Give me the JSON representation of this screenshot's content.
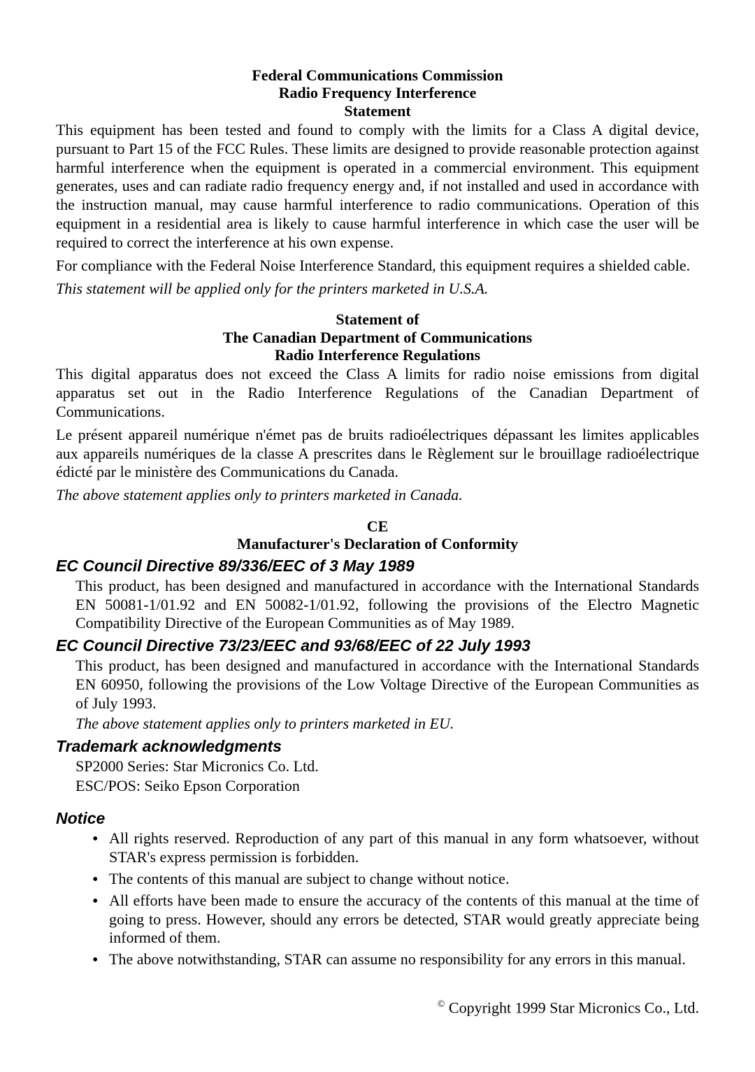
{
  "fcc": {
    "title_line1": "Federal Communications Commission",
    "title_line2": "Radio Frequency Interference",
    "title_line3": "Statement",
    "para1": "This equipment has been tested and found to comply with the limits for a Class A digital device, pursuant to Part 15 of the FCC Rules. These limits are designed to provide reasonable protection against harmful interference when the equipment is operated in a commercial environment. This equipment generates, uses and can radiate radio frequency energy and, if not installed and used in accordance with the instruction manual, may cause harmful interference to radio communications. Operation of this equipment in a residential area is likely to cause harmful interference in which case the user will be required to correct the interference at his own expense.",
    "para2": "For compliance with the Federal Noise Interference Standard, this equipment requires a shielded cable.",
    "italic": "This statement will be applied only for the printers marketed in U.S.A."
  },
  "canada": {
    "title_line1": "Statement of",
    "title_line2": "The Canadian Department of Communications",
    "title_line3": "Radio Interference Regulations",
    "para1": "This digital apparatus does not exceed the Class A limits for radio noise emissions from digital apparatus set out in the Radio Interference Regulations of the Canadian Department of Communications.",
    "para2": "Le présent appareil numérique n'émet pas de bruits radioélectriques dépassant les limites applicables aux appareils numériques de la classe A prescrites dans le Règlement sur le brouillage radioélectrique édicté par le ministère des Communications du Canada.",
    "italic": "The above statement applies only to printers marketed in Canada."
  },
  "ce": {
    "title_line1": "CE",
    "title_line2": "Manufacturer's Declaration of Conformity",
    "directive1_heading": "EC Council Directive 89/336/EEC of 3 May 1989",
    "directive1_body": "This product, has been designed and manufactured in accordance with the International Standards EN 50081-1/01.92 and EN 50082-1/01.92, following the provisions of the Electro Magnetic Compatibility Directive of the European Communities as of May 1989.",
    "directive2_heading": "EC Council Directive 73/23/EEC and 93/68/EEC of 22 July 1993",
    "directive2_body": "This product, has been designed and manufactured in accordance with the International Standards EN 60950, following the provisions of the Low Voltage Directive of the European Communities as of July 1993.",
    "italic": "The above statement applies only to printers marketed in EU."
  },
  "trademark": {
    "heading": "Trademark acknowledgments",
    "line1": "SP2000 Series: Star Micronics Co. Ltd.",
    "line2": "ESC/POS: Seiko Epson Corporation"
  },
  "notice": {
    "heading": "Notice",
    "item1": "All rights reserved. Reproduction of any part of this manual in any form whatsoever, without STAR's express permission is forbidden.",
    "item2": "The contents of this manual are subject to change without notice.",
    "item3": "All efforts have been made to ensure the accuracy of the contents of this manual at the time of going to press. However, should any errors be detected, STAR would greatly appreciate being informed of them.",
    "item4": "The above notwithstanding, STAR can assume no responsibility for any errors in this manual."
  },
  "copyright": "Copyright 1999 Star Micronics Co., Ltd."
}
